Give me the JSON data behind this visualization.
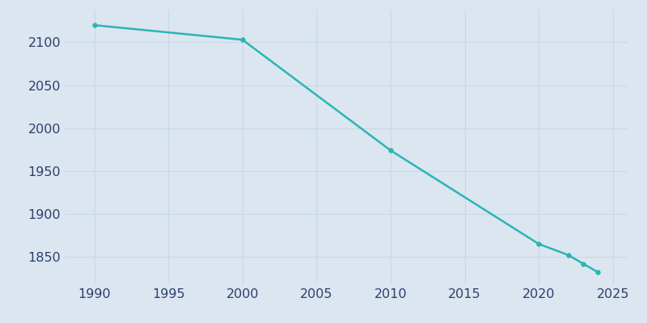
{
  "years": [
    1990,
    2000,
    2010,
    2020,
    2022,
    2023,
    2024
  ],
  "population": [
    2120,
    2103,
    1974,
    1865,
    1852,
    1842,
    1832
  ],
  "line_color": "#2ab5b5",
  "marker_color": "#2ab5b5",
  "bg_color": "#dce6f0",
  "plot_bg_color": "#dce6f0",
  "xlim": [
    1988,
    2026
  ],
  "ylim": [
    1818,
    2138
  ],
  "xticks": [
    1990,
    1995,
    2000,
    2005,
    2010,
    2015,
    2020,
    2025
  ],
  "yticks": [
    1850,
    1900,
    1950,
    2000,
    2050,
    2100
  ],
  "grid_color": "#c8d8e8",
  "tick_label_color": "#2d3f6e",
  "linewidth": 1.8,
  "markersize": 4,
  "tick_fontsize": 11.5
}
